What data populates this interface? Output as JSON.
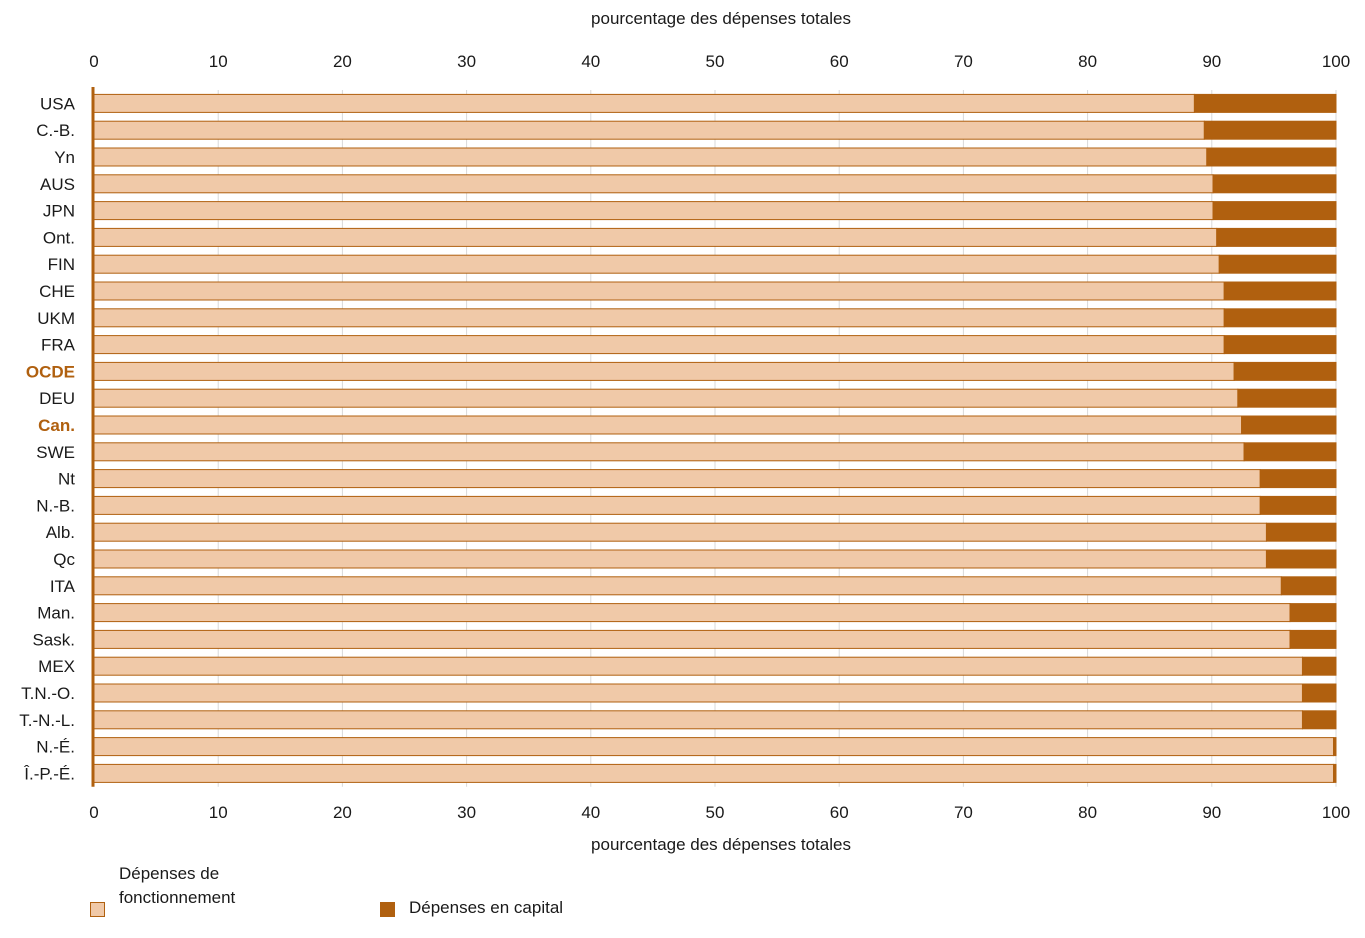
{
  "chart_data": {
    "type": "bar",
    "orientation": "horizontal",
    "stacked": true,
    "xlabel": "pourcentage des dépenses totales",
    "xlim": [
      0,
      100
    ],
    "xticks": [
      0,
      10,
      20,
      30,
      40,
      50,
      60,
      70,
      80,
      90,
      100
    ],
    "categories": [
      "USA",
      "C.-B.",
      "Yn",
      "AUS",
      "JPN",
      "Ont.",
      "FIN",
      "CHE",
      "UKM",
      "FRA",
      "OCDE",
      "DEU",
      "Can.",
      "SWE",
      "Nt",
      "N.-B.",
      "Alb.",
      "Qc",
      "ITA",
      "Man.",
      "Sask.",
      "MEX",
      "T.N.-O.",
      "T.-N.-L.",
      "N.-É.",
      "Î.-P.-É."
    ],
    "highlighted": [
      "OCDE",
      "Can."
    ],
    "series": [
      {
        "name": "Dépenses de fonctionnement",
        "color": "#f0c9a8",
        "values": [
          88.6,
          89.4,
          89.6,
          90.1,
          90.1,
          90.4,
          90.6,
          91.0,
          91.0,
          91.0,
          91.8,
          92.1,
          92.4,
          92.6,
          93.9,
          93.9,
          94.4,
          94.4,
          95.6,
          96.3,
          96.3,
          97.3,
          97.3,
          97.3,
          99.8,
          99.8
        ]
      },
      {
        "name": "Dépenses en capital",
        "color": "#b0600f",
        "values": [
          11.4,
          10.6,
          10.4,
          9.9,
          9.9,
          9.6,
          9.4,
          9.0,
          9.0,
          9.0,
          8.2,
          7.9,
          7.6,
          7.4,
          6.1,
          6.1,
          5.6,
          5.6,
          4.4,
          3.7,
          3.7,
          2.7,
          2.7,
          2.7,
          0.2,
          0.2
        ]
      }
    ],
    "legend_position": "bottom-left"
  },
  "legend": {
    "operating_label": "Dépenses de fonctionnement",
    "capital_label": "Dépenses en capital"
  }
}
